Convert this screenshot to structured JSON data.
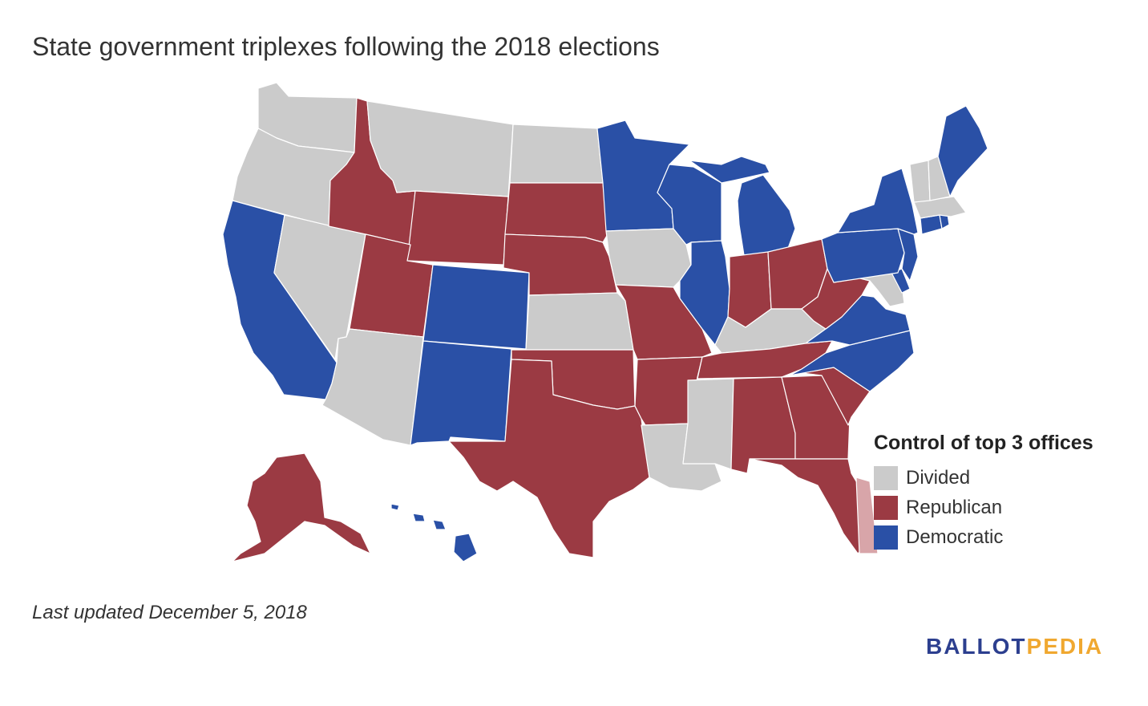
{
  "title": "State government triplexes following the 2018 elections",
  "footnote": "Last updated December 5, 2018",
  "logo": {
    "part1": "BALLOT",
    "part2": "PEDIA"
  },
  "colors": {
    "divided": "#cbcbcb",
    "republican": "#9b3a43",
    "democratic": "#2a50a6",
    "pr": "#d8a5a9"
  },
  "legend": {
    "title": "Control of top 3 offices",
    "items": [
      {
        "label": "Divided",
        "party": "divided"
      },
      {
        "label": "Republican",
        "party": "republican"
      },
      {
        "label": "Democratic",
        "party": "democratic"
      }
    ]
  },
  "states": [
    {
      "name": "Washington",
      "party": "divided"
    },
    {
      "name": "Oregon",
      "party": "divided"
    },
    {
      "name": "California",
      "party": "democratic"
    },
    {
      "name": "Nevada",
      "party": "divided"
    },
    {
      "name": "Idaho",
      "party": "republican"
    },
    {
      "name": "Montana",
      "party": "divided"
    },
    {
      "name": "Wyoming",
      "party": "republican"
    },
    {
      "name": "Utah",
      "party": "republican"
    },
    {
      "name": "Arizona",
      "party": "divided"
    },
    {
      "name": "Colorado",
      "party": "democratic"
    },
    {
      "name": "New Mexico",
      "party": "democratic"
    },
    {
      "name": "North Dakota",
      "party": "divided"
    },
    {
      "name": "South Dakota",
      "party": "republican"
    },
    {
      "name": "Nebraska",
      "party": "republican"
    },
    {
      "name": "Kansas",
      "party": "divided"
    },
    {
      "name": "Oklahoma",
      "party": "republican"
    },
    {
      "name": "Texas",
      "party": "republican"
    },
    {
      "name": "Minnesota",
      "party": "democratic"
    },
    {
      "name": "Iowa",
      "party": "divided"
    },
    {
      "name": "Missouri",
      "party": "republican"
    },
    {
      "name": "Arkansas",
      "party": "republican"
    },
    {
      "name": "Louisiana",
      "party": "divided"
    },
    {
      "name": "Wisconsin",
      "party": "democratic"
    },
    {
      "name": "Illinois",
      "party": "democratic"
    },
    {
      "name": "Michigan",
      "party": "democratic"
    },
    {
      "name": "Indiana",
      "party": "republican"
    },
    {
      "name": "Ohio",
      "party": "republican"
    },
    {
      "name": "Kentucky",
      "party": "divided"
    },
    {
      "name": "Tennessee",
      "party": "republican"
    },
    {
      "name": "Mississippi",
      "party": "divided"
    },
    {
      "name": "Alabama",
      "party": "republican"
    },
    {
      "name": "Georgia",
      "party": "republican"
    },
    {
      "name": "Florida",
      "party": "republican"
    },
    {
      "name": "South Carolina",
      "party": "republican"
    },
    {
      "name": "North Carolina",
      "party": "democratic"
    },
    {
      "name": "Virginia",
      "party": "democratic"
    },
    {
      "name": "West Virginia",
      "party": "republican"
    },
    {
      "name": "Maryland",
      "party": "divided"
    },
    {
      "name": "Delaware",
      "party": "democratic"
    },
    {
      "name": "Pennsylvania",
      "party": "democratic"
    },
    {
      "name": "New Jersey",
      "party": "democratic"
    },
    {
      "name": "New York",
      "party": "democratic"
    },
    {
      "name": "Connecticut",
      "party": "democratic"
    },
    {
      "name": "Rhode Island",
      "party": "democratic"
    },
    {
      "name": "Massachusetts",
      "party": "divided"
    },
    {
      "name": "Vermont",
      "party": "divided"
    },
    {
      "name": "New Hampshire",
      "party": "divided"
    },
    {
      "name": "Maine",
      "party": "democratic"
    },
    {
      "name": "Alaska",
      "party": "republican"
    },
    {
      "name": "Hawaii",
      "party": "democratic"
    },
    {
      "name": "Puerto Rico",
      "party": "pr"
    }
  ]
}
